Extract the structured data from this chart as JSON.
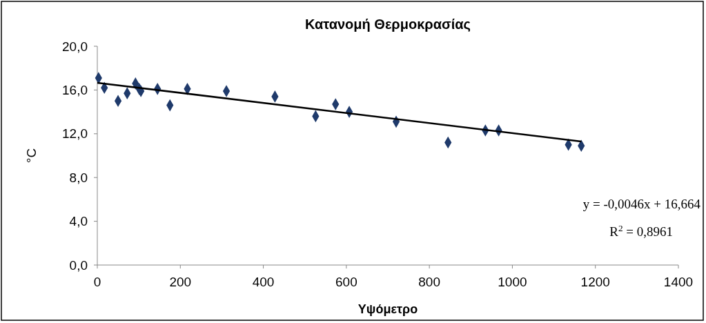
{
  "chart_data": {
    "type": "scatter",
    "title": "Κατανομή Θερμοκρασίας",
    "xlabel": "Υψόμετρο",
    "ylabel": "°C",
    "xlim": [
      0,
      1400
    ],
    "xticks": [
      0,
      200,
      400,
      600,
      800,
      1000,
      1200,
      1400
    ],
    "ylim": [
      0,
      20
    ],
    "yticks": [
      {
        "value": 0,
        "label": "0,0"
      },
      {
        "value": 4,
        "label": "4,0"
      },
      {
        "value": 8,
        "label": "8,0"
      },
      {
        "value": 12,
        "label": "12,0"
      },
      {
        "value": 16,
        "label": "16,0"
      },
      {
        "value": 20,
        "label": "20,0"
      }
    ],
    "grid": false,
    "series": [
      {
        "marker": "diamond",
        "color": "#1f3a6b",
        "x": [
          3,
          17,
          50,
          72,
          92,
          101,
          105,
          145,
          175,
          217,
          311,
          428,
          526,
          574,
          607,
          720,
          845,
          935,
          967,
          1135,
          1166
        ],
        "values": [
          17.1,
          16.2,
          15.0,
          15.7,
          16.6,
          16.1,
          15.9,
          16.1,
          14.6,
          16.1,
          15.9,
          15.4,
          13.6,
          14.7,
          14.0,
          13.1,
          11.2,
          12.3,
          12.3,
          11.0,
          10.9
        ]
      },
      {
        "type": "line",
        "color": "#000000",
        "x": [
          0,
          1166
        ],
        "values": [
          16.66,
          11.3
        ]
      }
    ],
    "annotations": [
      "y = -0,0046x + 16,664",
      "R$^{2}$ = 0,8961"
    ]
  }
}
